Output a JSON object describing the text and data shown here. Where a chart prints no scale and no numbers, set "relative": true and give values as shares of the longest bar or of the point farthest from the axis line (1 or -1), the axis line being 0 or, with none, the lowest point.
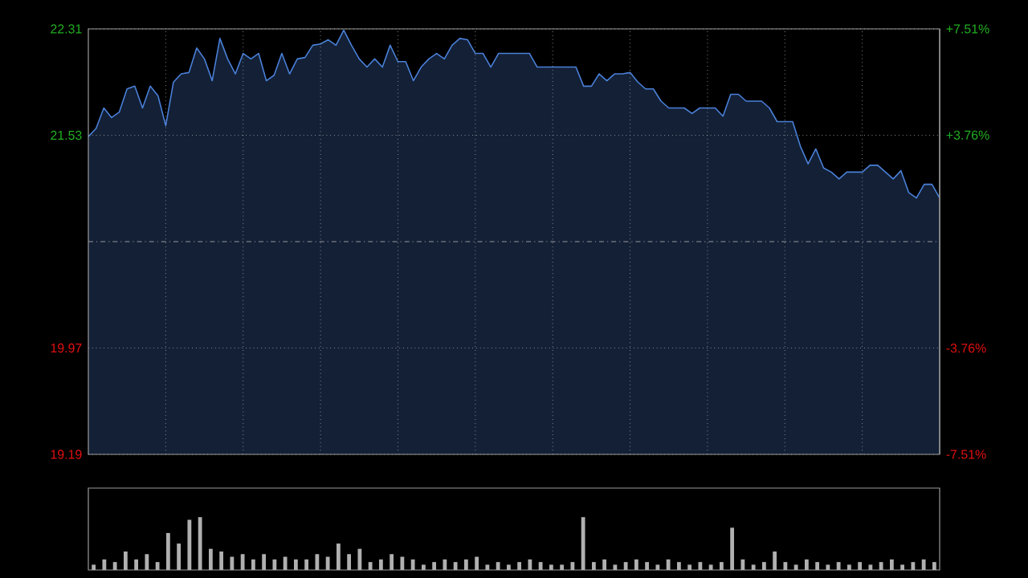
{
  "chart_data": [
    {
      "type": "area",
      "color": "#4a80d8",
      "categories": [
        null,
        null,
        null,
        null,
        null,
        null,
        null,
        null,
        null,
        null,
        null,
        null,
        null,
        null,
        null,
        null,
        null,
        null,
        null,
        null,
        null,
        null,
        null,
        null,
        null,
        null,
        null,
        null,
        null,
        null,
        null,
        null,
        null,
        null,
        null,
        null,
        null,
        null,
        null,
        null,
        null,
        null,
        null,
        null,
        null,
        null,
        null,
        null,
        null,
        null,
        null,
        null,
        null,
        null,
        null,
        null,
        null,
        null,
        null,
        null,
        null,
        null,
        null,
        null,
        null,
        null,
        null,
        null,
        null,
        null,
        null,
        null,
        null,
        null,
        null,
        null,
        null,
        null,
        null,
        null,
        null,
        null,
        null,
        null,
        null,
        null,
        null,
        null,
        null,
        null,
        null,
        null,
        null,
        null,
        null,
        null,
        null,
        null,
        null,
        null,
        null,
        null,
        null,
        null,
        null,
        null,
        null,
        null,
        null,
        null,
        null
      ],
      "values": [
        21.52,
        21.58,
        21.73,
        21.66,
        21.7,
        21.87,
        21.89,
        21.73,
        21.89,
        21.82,
        21.6,
        21.92,
        21.98,
        21.99,
        22.17,
        22.09,
        21.93,
        22.24,
        22.09,
        21.98,
        22.13,
        22.09,
        22.13,
        21.93,
        21.97,
        22.13,
        21.98,
        22.09,
        22.1,
        22.19,
        22.2,
        22.23,
        22.19,
        22.3,
        22.19,
        22.09,
        22.03,
        22.09,
        22.03,
        22.19,
        22.07,
        22.07,
        21.93,
        22.03,
        22.09,
        22.13,
        22.09,
        22.19,
        22.24,
        22.23,
        22.13,
        22.13,
        22.03,
        22.13,
        22.13,
        22.13,
        22.13,
        22.13,
        22.03,
        22.03,
        22.03,
        22.03,
        22.03,
        22.03,
        21.89,
        21.89,
        21.98,
        21.93,
        21.98,
        21.98,
        21.99,
        21.92,
        21.87,
        21.87,
        21.78,
        21.73,
        21.73,
        21.73,
        21.69,
        21.73,
        21.73,
        21.73,
        21.67,
        21.83,
        21.83,
        21.78,
        21.78,
        21.78,
        21.73,
        21.63,
        21.63,
        21.63,
        21.45,
        21.32,
        21.43,
        21.29,
        21.26,
        21.21,
        21.26,
        21.26,
        21.26,
        21.31,
        21.31,
        21.26,
        21.21,
        21.27,
        21.11,
        21.07,
        21.17,
        21.17,
        21.07
      ],
      "ylim": [
        19.19,
        22.31
      ],
      "yticks": [
        19.19,
        19.97,
        21.53,
        22.31
      ],
      "y2lim": [
        -7.51,
        7.51
      ],
      "y2ticks": [
        {
          "value": -7.51,
          "label": "-7.51%"
        },
        {
          "value": -3.76,
          "label": "-3.76%"
        },
        {
          "value": 3.76,
          "label": "+3.76%"
        },
        {
          "value": 7.51,
          "label": "+7.51%"
        }
      ],
      "ref_lines": [
        {
          "axis": "y",
          "value": 20.75,
          "line_style": "dashdot"
        }
      ],
      "grid": true
    },
    {
      "type": "bar",
      "relative": true,
      "color": "#b0b0b0",
      "categories": [
        null,
        null,
        null,
        null,
        null,
        null,
        null,
        null,
        null,
        null,
        null,
        null,
        null,
        null,
        null,
        null,
        null,
        null,
        null,
        null,
        null,
        null,
        null,
        null,
        null,
        null,
        null,
        null,
        null,
        null,
        null,
        null,
        null,
        null,
        null,
        null,
        null,
        null,
        null,
        null,
        null,
        null,
        null,
        null,
        null,
        null,
        null,
        null,
        null,
        null,
        null,
        null,
        null,
        null,
        null,
        null,
        null,
        null,
        null,
        null,
        null,
        null,
        null,
        null,
        null,
        null,
        null,
        null,
        null,
        null,
        null,
        null,
        null,
        null,
        null,
        null,
        null,
        null,
        null,
        null
      ],
      "values": [
        0.1,
        0.2,
        0.15,
        0.35,
        0.2,
        0.3,
        0.15,
        0.7,
        0.5,
        0.95,
        1.0,
        0.4,
        0.35,
        0.25,
        0.3,
        0.2,
        0.3,
        0.2,
        0.25,
        0.2,
        0.2,
        0.3,
        0.25,
        0.5,
        0.3,
        0.4,
        0.15,
        0.2,
        0.3,
        0.25,
        0.2,
        0.1,
        0.15,
        0.2,
        0.15,
        0.2,
        0.25,
        0.1,
        0.15,
        0.1,
        0.15,
        0.2,
        0.15,
        0.1,
        0.1,
        0.15,
        1.0,
        0.15,
        0.2,
        0.1,
        0.15,
        0.2,
        0.15,
        0.1,
        0.2,
        0.15,
        0.1,
        0.15,
        0.1,
        0.15,
        0.8,
        0.2,
        0.1,
        0.15,
        0.35,
        0.15,
        0.1,
        0.2,
        0.15,
        0.1,
        0.15,
        0.1,
        0.15,
        0.1,
        0.15,
        0.2,
        0.1,
        0.15,
        0.2,
        0.15
      ]
    }
  ]
}
